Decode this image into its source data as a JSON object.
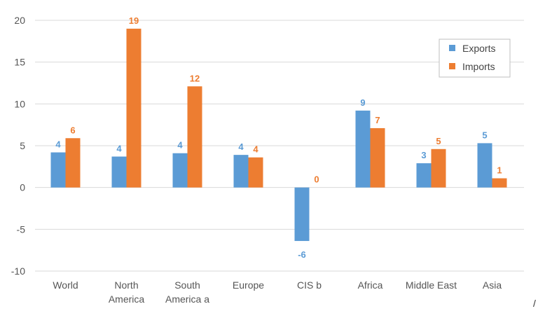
{
  "chart_data": {
    "type": "bar",
    "title": "",
    "xlabel": "",
    "ylabel": "",
    "ylim": [
      -10,
      20
    ],
    "yticks": [
      -10,
      -5,
      0,
      5,
      10,
      15,
      20
    ],
    "grid": true,
    "legend_position": "top-right",
    "categories": [
      [
        "World"
      ],
      [
        "North",
        "America"
      ],
      [
        "South",
        "America  a"
      ],
      [
        "Europe"
      ],
      [
        "CIS  b"
      ],
      [
        "Africa"
      ],
      [
        "Middle East"
      ],
      [
        "Asia"
      ]
    ],
    "series": [
      {
        "name": "Exports",
        "color": "#5b9bd5",
        "values": [
          4.2,
          3.7,
          4.1,
          3.9,
          -6.4,
          9.2,
          2.9,
          5.3
        ],
        "labels": [
          "4",
          "4",
          "4",
          "4",
          "-6",
          "9",
          "3",
          "5"
        ]
      },
      {
        "name": "Imports",
        "color": "#ed7d31",
        "values": [
          5.9,
          19.0,
          12.1,
          3.6,
          0,
          7.1,
          4.6,
          1.1
        ],
        "labels": [
          "6",
          "19",
          "12",
          "4",
          "0",
          "7",
          "5",
          "1"
        ]
      }
    ]
  },
  "footer_mark": "/"
}
